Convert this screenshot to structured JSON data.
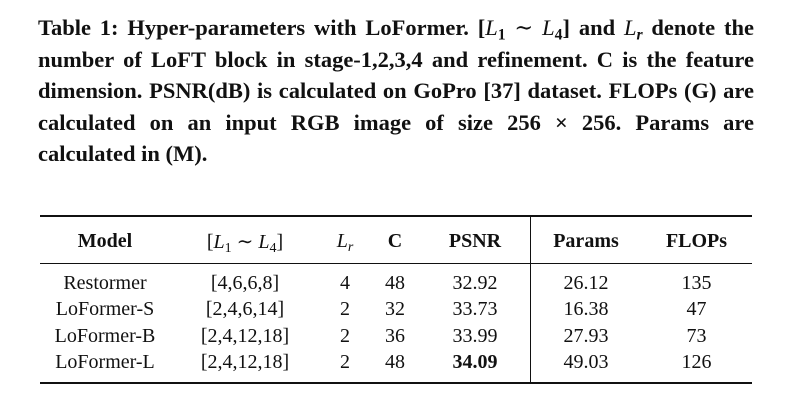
{
  "caption": {
    "parts": [
      "Table 1: Hyper-parameters with LoFormer. ",
      "[",
      "L",
      "1",
      " ∼ ",
      "L",
      "4",
      "]",
      " and ",
      "L",
      "r",
      " denote the number of LoFT block in stage-1,2,3,4 and refinement. C is the feature dimension. PSNR(dB) is calculated on GoPro [37] dataset. FLOPs (G) are calculated on an input RGB image of size 256 × 256. Params are calculated in (M)."
    ]
  },
  "table": {
    "header": [
      "Model",
      [
        "[",
        "L",
        "1",
        " ∼ ",
        "L",
        "4",
        "]"
      ],
      [
        "L",
        "r"
      ],
      "C",
      "PSNR",
      "Params",
      "FLOPs"
    ],
    "rows": [
      [
        "Restormer",
        "[4,6,6,8]",
        4,
        48,
        32.92,
        26.12,
        135
      ],
      [
        "LoFormer-S",
        "[2,4,6,14]",
        2,
        32,
        33.73,
        16.38,
        47
      ],
      [
        "LoFormer-B",
        "[2,4,12,18]",
        2,
        36,
        33.99,
        27.93,
        73
      ],
      [
        "LoFormer-L",
        "[2,4,12,18]",
        2,
        48,
        34.09,
        49.03,
        126
      ]
    ]
  }
}
